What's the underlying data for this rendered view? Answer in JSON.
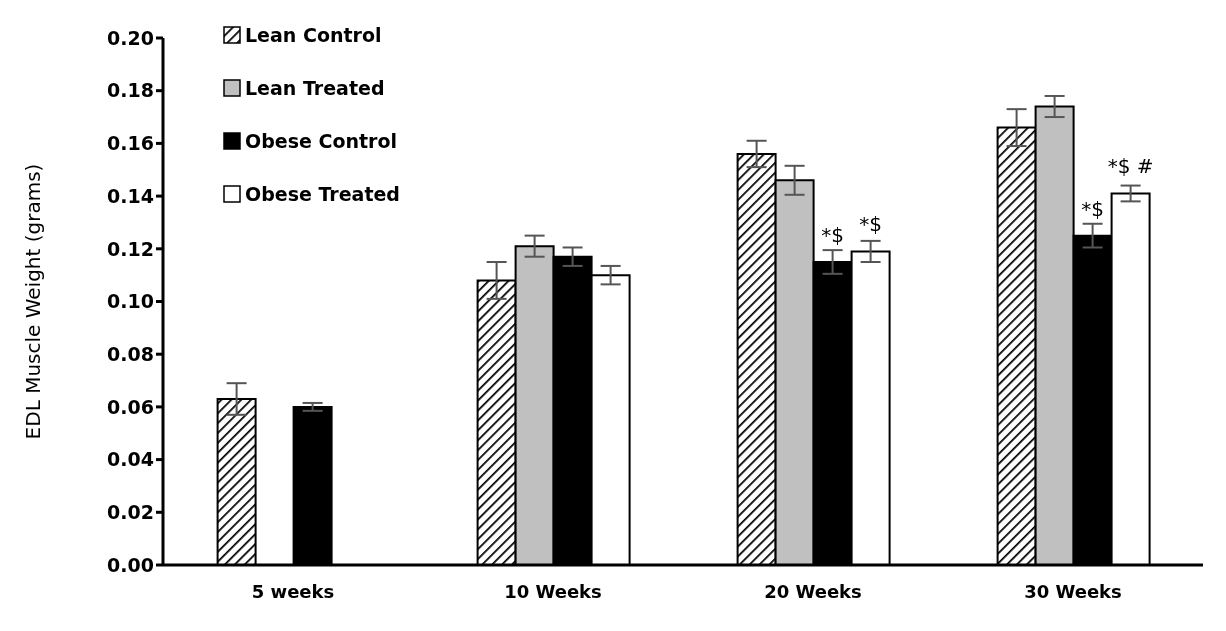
{
  "chart_data": {
    "type": "bar",
    "ylabel": "EDL Muscle Weight (grams)",
    "categories": [
      "5 weeks",
      "10 Weeks",
      "20 Weeks",
      "30 Weeks"
    ],
    "series": [
      {
        "name": "Lean Control",
        "color": "#000000",
        "values": [
          0.063,
          0.108,
          0.156,
          0.166
        ],
        "errors": [
          0.006,
          0.007,
          0.005,
          0.007
        ]
      },
      {
        "name": "Lean Treated",
        "color": "#c0c0c0",
        "values": [
          null,
          0.121,
          0.146,
          0.174
        ],
        "errors": [
          null,
          0.004,
          0.0055,
          0.004
        ]
      },
      {
        "name": "Obese Control",
        "color": "#000000",
        "values": [
          0.06,
          0.117,
          0.115,
          0.125
        ],
        "errors": [
          0.0015,
          0.0035,
          0.0045,
          0.0045
        ],
        "value_labels": [
          null,
          null,
          "*$",
          "*$"
        ]
      },
      {
        "name": "Obese Treated",
        "color": "#ffffff",
        "values": [
          null,
          0.11,
          0.119,
          0.141
        ],
        "errors": [
          null,
          0.0035,
          0.004,
          0.003
        ],
        "value_labels": [
          null,
          null,
          "*$",
          "*$ #"
        ]
      }
    ],
    "ylim": [
      0,
      0.2
    ],
    "yticks": [
      {
        "value": 0,
        "label": "0.00"
      },
      {
        "value": 0.02,
        "label": "0.02"
      },
      {
        "value": 0.04,
        "label": "0.04"
      },
      {
        "value": 0.06,
        "label": "0.06"
      },
      {
        "value": 0.08,
        "label": "0.08"
      },
      {
        "value": 0.1,
        "label": "0.10"
      },
      {
        "value": 0.12,
        "label": "0.12"
      },
      {
        "value": 0.14,
        "label": "0.14"
      },
      {
        "value": 0.16,
        "label": "0.16"
      },
      {
        "value": 0.18,
        "label": "0.18"
      },
      {
        "value": 0.2,
        "label": "0.20"
      }
    ],
    "grid": false,
    "legend": "top left"
  }
}
